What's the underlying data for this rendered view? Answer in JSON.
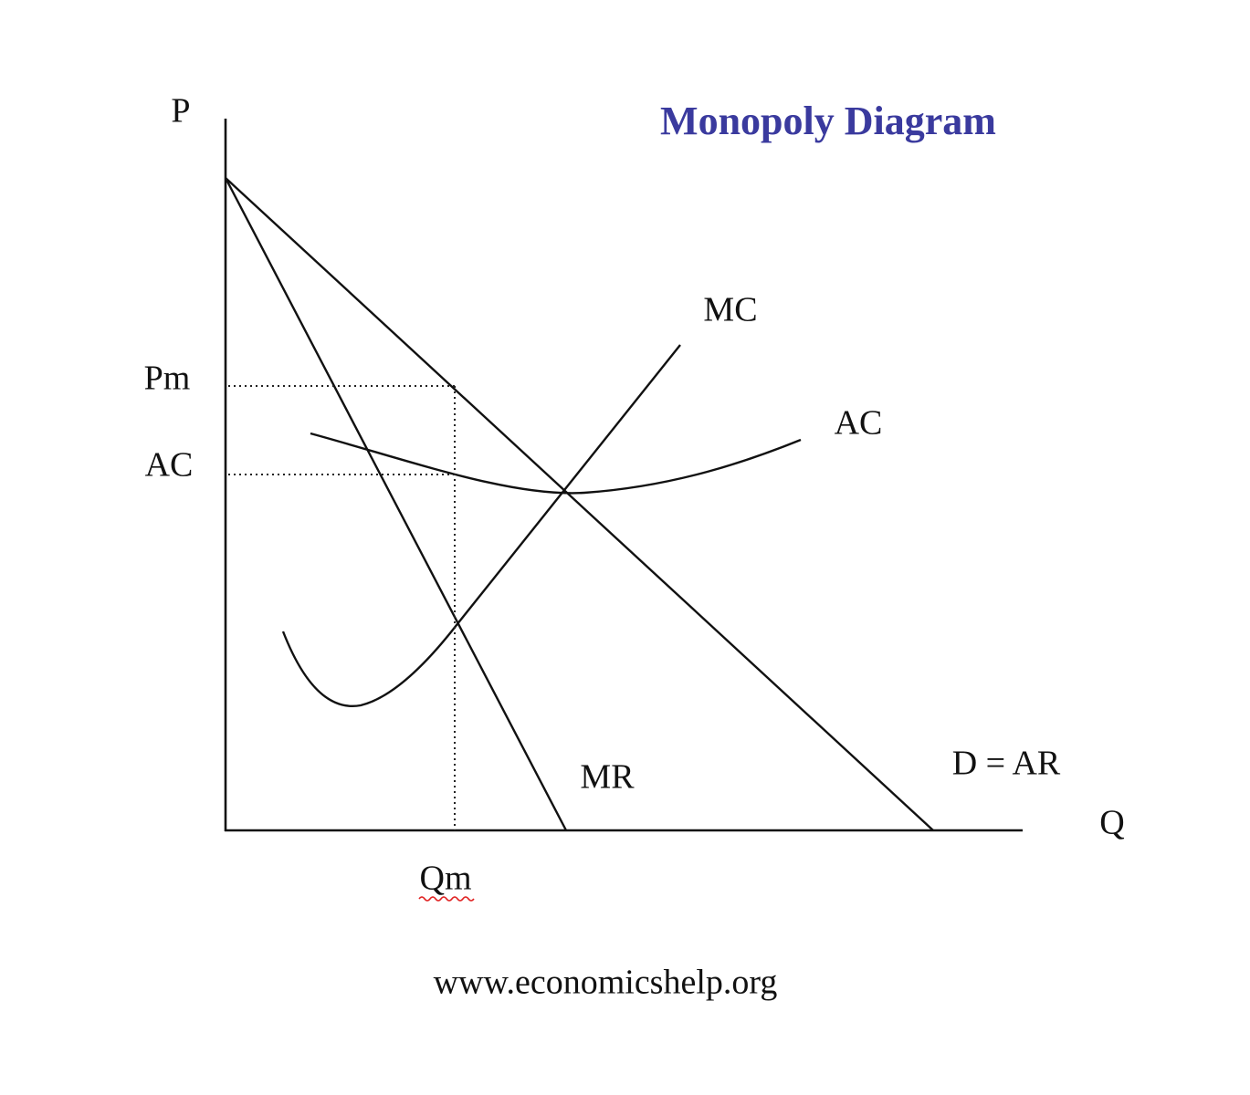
{
  "title": "Monopoly Diagram",
  "axes": {
    "y_label": "P",
    "x_label": "Q"
  },
  "levels": {
    "price": "Pm",
    "average_cost": "AC",
    "quantity": "Qm"
  },
  "curves": {
    "mc": "MC",
    "ac": "AC",
    "mr": "MR",
    "demand": "D = AR"
  },
  "footer": "www.economicshelp.org"
}
